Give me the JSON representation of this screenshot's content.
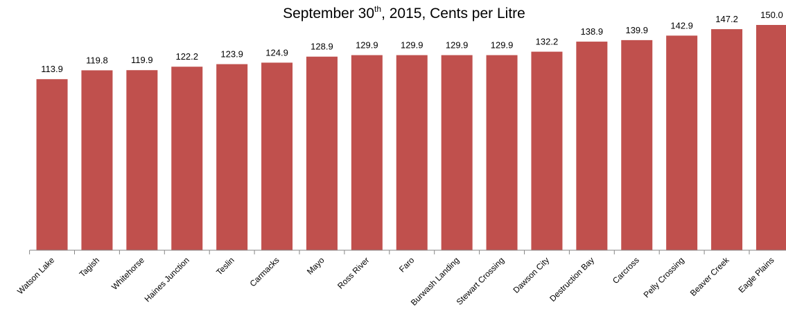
{
  "chart_data": {
    "type": "bar",
    "subtitle": [
      "September 30",
      "th",
      ", 2015, Cents per Litre"
    ],
    "categories": [
      "Watson Lake",
      "Tagish",
      "Whitehorse",
      "Haines Junction",
      "Teslin",
      "Carmacks",
      "Mayo",
      "Ross River",
      "Faro",
      "Burwash Landing",
      "Stewart Crossing",
      "Dawson City",
      "Destruction Bay",
      "Carcross",
      "Pelly Crossing",
      "Beaver Creek",
      "Eagle Plains"
    ],
    "values": [
      113.9,
      119.8,
      119.9,
      122.2,
      123.9,
      124.9,
      128.9,
      129.9,
      129.9,
      129.9,
      129.9,
      132.2,
      138.9,
      139.9,
      142.9,
      147.2,
      150.0
    ],
    "value_labels": [
      "113.9",
      "119.8",
      "119.9",
      "122.2",
      "123.9",
      "124.9",
      "128.9",
      "129.9",
      "129.9",
      "129.9",
      "129.9",
      "132.2",
      "138.9",
      "139.9",
      "142.9",
      "147.2",
      "150.0"
    ],
    "color": "#c0504d",
    "ylim": [
      0,
      150
    ]
  }
}
